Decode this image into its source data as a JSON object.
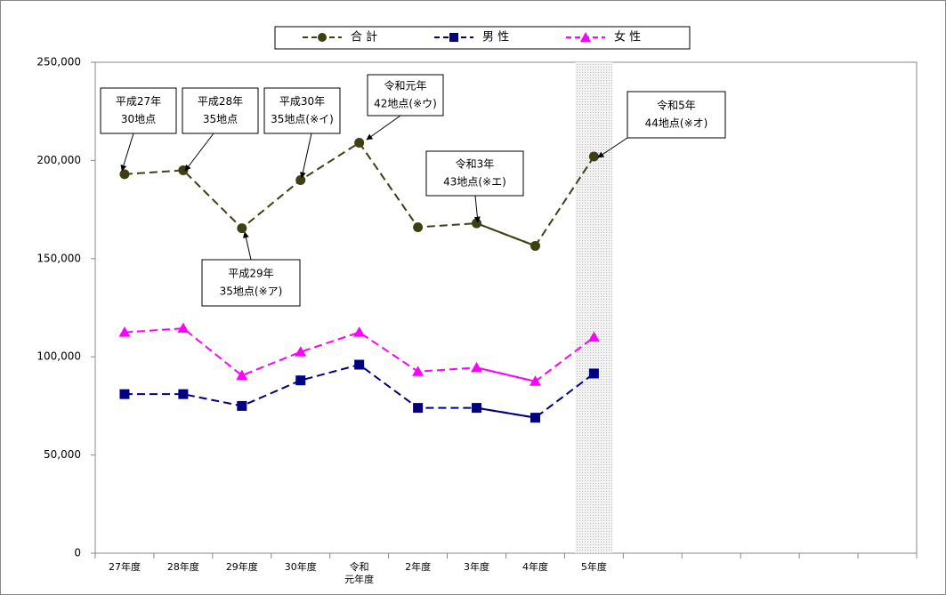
{
  "chart_data": {
    "type": "line",
    "categories": [
      "27年度",
      "28年度",
      "29年度",
      "30年度",
      "令和\n元年度",
      "2年度",
      "3年度",
      "4年度",
      "5年度",
      null,
      null,
      null,
      null,
      null
    ],
    "series": [
      {
        "name": "合 計",
        "color": "#3f3f14",
        "marker": "circle",
        "values": [
          193000,
          195000,
          165500,
          190000,
          209000,
          166000,
          168000,
          156500,
          202000,
          null,
          null,
          null,
          null,
          null
        ]
      },
      {
        "name": "男 性",
        "color": "#000080",
        "marker": "square",
        "values": [
          81000,
          81000,
          75000,
          88000,
          96000,
          74000,
          74000,
          69000,
          91500,
          null,
          null,
          null,
          null,
          null
        ]
      },
      {
        "name": "女 性",
        "color": "#ff00ff",
        "marker": "triangle",
        "values": [
          112500,
          114500,
          90500,
          102500,
          112500,
          92500,
          94500,
          87500,
          110000,
          null,
          null,
          null,
          null,
          null
        ]
      }
    ],
    "ylim": [
      0,
      250000
    ],
    "yticks": [
      0,
      {
        "value": 50000,
        "label": "50,000"
      },
      {
        "value": 100000,
        "label": "100,000"
      },
      {
        "value": 150000,
        "label": "150,000"
      },
      {
        "value": 200000,
        "label": "200,000"
      },
      {
        "value": 250000,
        "label": "250,000"
      }
    ],
    "legend": "top",
    "annotations": [
      {
        "lines": [
          "平成27年",
          "30地点"
        ]
      },
      {
        "lines": [
          "平成28年",
          "35地点"
        ]
      },
      {
        "lines": [
          "平成30年",
          "35地点(※イ)"
        ]
      },
      {
        "lines": [
          "令和元年",
          "42地点(※ウ)"
        ]
      },
      {
        "lines": [
          "平成29年",
          "35地点(※ア)"
        ]
      },
      {
        "lines": [
          "令和3年",
          "43地点(※エ)"
        ]
      },
      {
        "lines": [
          "令和5年",
          "44地点(※オ)"
        ]
      }
    ]
  }
}
